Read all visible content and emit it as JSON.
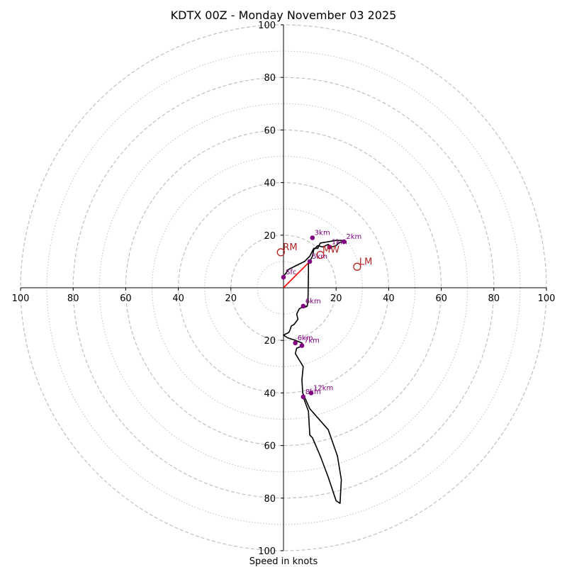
{
  "chart_data": {
    "type": "scatter",
    "plot_kind": "hodograph",
    "title": "KDTX 00Z - Monday November 03 2025",
    "xlabel": "Speed in knots",
    "ylabel": "",
    "xlim": [
      -100,
      100
    ],
    "ylim": [
      -100,
      100
    ],
    "grid": true,
    "ring_major_step": 20,
    "ring_minor_step": 10,
    "x_tick_labels": [
      "100",
      "80",
      "60",
      "40",
      "20",
      "20",
      "40",
      "60",
      "80",
      "100"
    ],
    "x_tick_values": [
      -100,
      -80,
      -60,
      -40,
      -20,
      20,
      40,
      60,
      80,
      100
    ],
    "y_tick_labels": [
      "100",
      "80",
      "60",
      "40",
      "20",
      "20",
      "40",
      "60",
      "80",
      "100"
    ],
    "y_tick_values": [
      100,
      80,
      60,
      40,
      20,
      -20,
      -40,
      -60,
      -80,
      -100
    ],
    "series": [
      {
        "type": "line",
        "color": "#000000",
        "x": [
          0,
          0.5,
          2,
          8,
          10,
          11,
          11.5,
          12,
          13,
          15,
          17,
          18,
          20,
          21,
          22,
          23,
          20,
          17,
          14,
          13,
          12,
          11.5,
          11,
          10,
          9.5,
          9.5,
          9.3,
          9,
          8.5,
          9,
          8,
          7,
          6,
          5,
          5.5,
          4,
          3,
          2.5,
          2,
          0,
          1.5,
          3,
          4.5,
          7,
          7.5,
          5,
          4.5,
          7.5,
          7,
          7.3,
          10,
          17,
          20.5,
          22,
          21.5,
          20,
          17,
          14,
          11,
          10,
          9.5,
          7.5
        ],
        "y": [
          4,
          5,
          7,
          10,
          12,
          14,
          15,
          15,
          16,
          15.5,
          16.5,
          15.5,
          16,
          17,
          17.5,
          18,
          18,
          17.5,
          17,
          15,
          15,
          14.5,
          12,
          10,
          9,
          5,
          -5,
          -7,
          -7,
          -7,
          -7.5,
          -7.5,
          -8,
          -10,
          -12,
          -14,
          -14.5,
          -16,
          -17,
          -18,
          -19,
          -19.5,
          -20,
          -21,
          -22,
          -23,
          -25,
          -30,
          -35,
          -40,
          -46,
          -54,
          -64,
          -73,
          -82,
          -81,
          -72,
          -64,
          -57,
          -56,
          -47,
          -41.5
        ]
      }
    ],
    "height_markers": [
      {
        "label": "Sfc",
        "x": 0,
        "y": 4
      },
      {
        "label": "1km",
        "x": 17.5,
        "y": 15.5
      },
      {
        "label": "2km",
        "x": 23,
        "y": 17.5
      },
      {
        "label": "3km",
        "x": 11,
        "y": 19
      },
      {
        "label": "5km",
        "x": 10,
        "y": 10
      },
      {
        "label": "6km",
        "x": 7.5,
        "y": -7
      },
      {
        "label": "6km",
        "x": 4.5,
        "y": -21
      },
      {
        "label": "7km",
        "x": 7,
        "y": -22
      },
      {
        "label": "8km",
        "x": 7.5,
        "y": -41.5
      },
      {
        "label": "12km",
        "x": 10.5,
        "y": -40
      }
    ],
    "storm_motions": [
      {
        "label": "RM",
        "x": -1,
        "y": 13.5
      },
      {
        "label": "MW",
        "x": 14,
        "y": 12.5
      },
      {
        "label": "LM",
        "x": 28,
        "y": 8
      }
    ],
    "shear_vector": {
      "x0": 0,
      "y0": 0,
      "x1": 10,
      "y1": 10,
      "color": "#ff0000"
    },
    "colors": {
      "profile": "#000000",
      "height_marker": "#800080",
      "storm_motion": "#b22222",
      "shear_vector": "#ff0000",
      "grid": "#c0c0c0"
    }
  }
}
